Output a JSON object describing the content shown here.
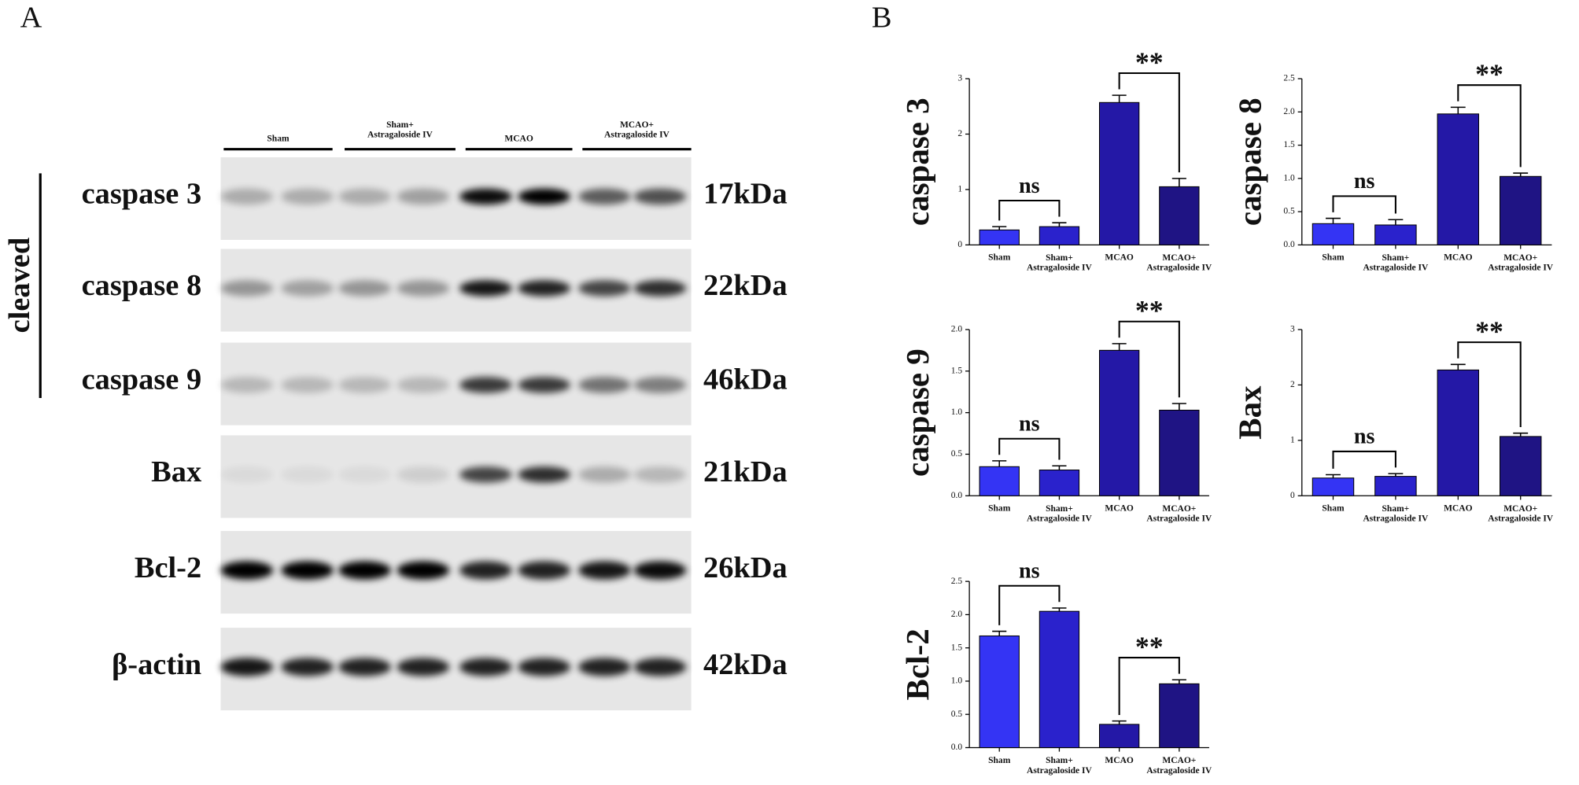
{
  "panel_labels": [
    "A",
    "B"
  ],
  "blot": {
    "groups": [
      "Sham",
      "Sham+\nAstragaloside IV",
      "MCAO",
      "MCAO+\nAstragaloside IV"
    ],
    "cleaved_label": "cleaved",
    "rows": [
      {
        "label": "caspase 3",
        "size": "17kDa"
      },
      {
        "label": "caspase 8",
        "size": "22kDa"
      },
      {
        "label": "caspase 9",
        "size": "46kDa"
      },
      {
        "label": "Bax",
        "size": "21kDa"
      },
      {
        "label": "Bcl-2",
        "size": "26kDa"
      },
      {
        "label": "β-actin",
        "size": "42kDa"
      }
    ]
  },
  "chart_data": [
    {
      "type": "bar",
      "y_label": "caspase 3",
      "categories": [
        "Sham",
        "Sham+\nAstragaloside IV",
        "MCAO",
        "MCAO+\nAstragaloside IV"
      ],
      "values": [
        0.27,
        0.33,
        2.57,
        1.05
      ],
      "errors": [
        0.06,
        0.07,
        0.13,
        0.15
      ],
      "colors": [
        "#3434f4",
        "#2a22cc",
        "#2418a6",
        "#1f1484"
      ],
      "ylim": [
        0,
        3
      ],
      "yticks": [
        0,
        1,
        2,
        3
      ],
      "annotations": [
        "ns",
        "**"
      ]
    },
    {
      "type": "bar",
      "y_label": "caspase 8",
      "categories": [
        "Sham",
        "Sham+\nAstragaloside IV",
        "MCAO",
        "MCAO+\nAstragaloside IV"
      ],
      "values": [
        0.32,
        0.3,
        1.97,
        1.03
      ],
      "errors": [
        0.08,
        0.08,
        0.1,
        0.05
      ],
      "colors": [
        "#3434f4",
        "#2a22cc",
        "#2418a6",
        "#1f1484"
      ],
      "ylim": [
        0,
        2.5
      ],
      "yticks": [
        {
          "value": 0,
          "label": "0.0"
        },
        {
          "value": 0.5,
          "label": "0.5"
        },
        {
          "value": 1,
          "label": "1.0"
        },
        {
          "value": 1.5,
          "label": "1.5"
        },
        {
          "value": 2,
          "label": "2.0"
        },
        {
          "value": 2.5,
          "label": "2.5"
        }
      ],
      "annotations": [
        "ns",
        "**"
      ]
    },
    {
      "type": "bar",
      "y_label": "caspase 9",
      "categories": [
        "Sham",
        "Sham+\nAstragaloside IV",
        "MCAO",
        "MCAO+\nAstragaloside IV"
      ],
      "values": [
        0.35,
        0.31,
        1.75,
        1.03
      ],
      "errors": [
        0.07,
        0.05,
        0.08,
        0.08
      ],
      "colors": [
        "#3434f4",
        "#2a22cc",
        "#2418a6",
        "#1f1484"
      ],
      "ylim": [
        0,
        2
      ],
      "yticks": [
        {
          "value": 0,
          "label": "0.0"
        },
        {
          "value": 0.5,
          "label": "0.5"
        },
        {
          "value": 1,
          "label": "1.0"
        },
        {
          "value": 1.5,
          "label": "1.5"
        },
        {
          "value": 2,
          "label": "2.0"
        }
      ],
      "annotations": [
        "ns",
        "**"
      ]
    },
    {
      "type": "bar",
      "y_label": "Bax",
      "categories": [
        "Sham",
        "Sham+\nAstragaloside IV",
        "MCAO",
        "MCAO+\nAstragaloside IV"
      ],
      "values": [
        0.32,
        0.35,
        2.27,
        1.07
      ],
      "errors": [
        0.06,
        0.05,
        0.1,
        0.06
      ],
      "colors": [
        "#3434f4",
        "#2a22cc",
        "#2418a6",
        "#1f1484"
      ],
      "ylim": [
        0,
        3
      ],
      "yticks": [
        0,
        1,
        2,
        3
      ],
      "annotations": [
        "ns",
        "**"
      ]
    },
    {
      "type": "bar",
      "y_label": "Bcl-2",
      "categories": [
        "Sham",
        "Sham+\nAstragaloside IV",
        "MCAO",
        "MCAO+\nAstragaloside IV"
      ],
      "values": [
        1.68,
        2.05,
        0.35,
        0.96
      ],
      "errors": [
        0.07,
        0.05,
        0.05,
        0.06
      ],
      "colors": [
        "#3434f4",
        "#2a22cc",
        "#2418a6",
        "#1f1484"
      ],
      "ylim": [
        0,
        2.5
      ],
      "yticks": [
        {
          "value": 0,
          "label": "0.0"
        },
        {
          "value": 0.5,
          "label": "0.5"
        },
        {
          "value": 1,
          "label": "1.0"
        },
        {
          "value": 1.5,
          "label": "1.5"
        },
        {
          "value": 2,
          "label": "2.0"
        },
        {
          "value": 2.5,
          "label": "2.5"
        }
      ],
      "annotations": [
        "ns",
        "**"
      ]
    }
  ]
}
